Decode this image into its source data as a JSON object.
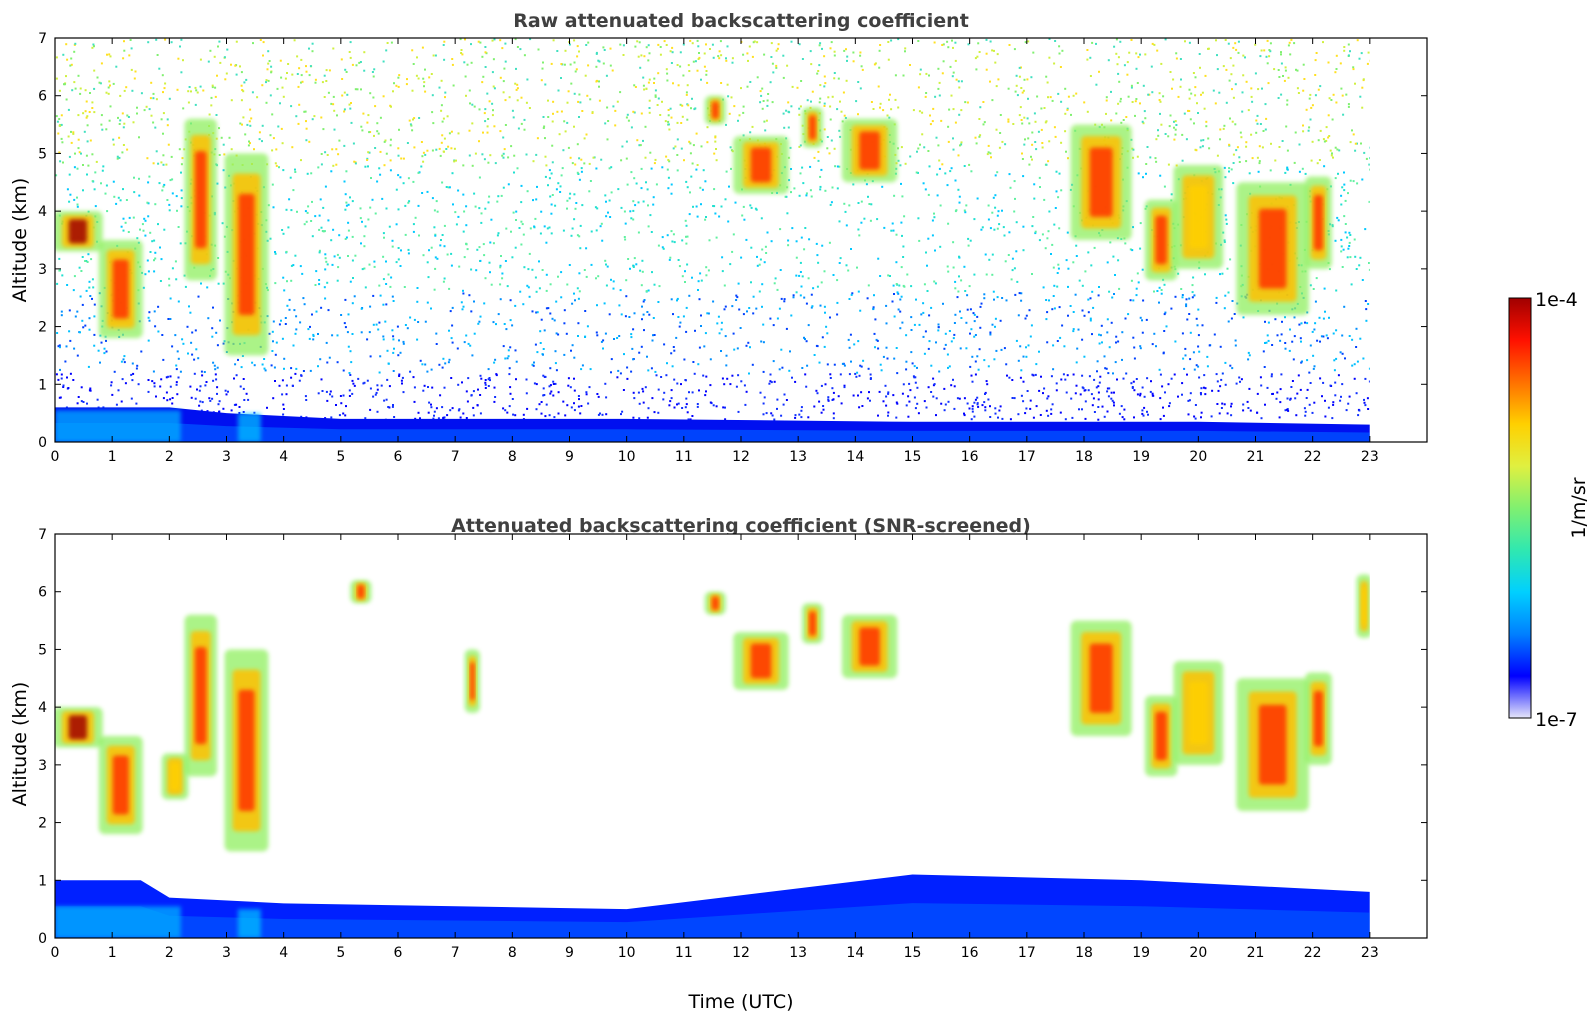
{
  "colors": {
    "colormap": [
      "#e6e6fa",
      "#0000ff",
      "#0080ff",
      "#00d0ff",
      "#30e8b0",
      "#80f070",
      "#e0f040",
      "#ffd000",
      "#ff7000",
      "#ff1000",
      "#a00000"
    ],
    "frame": "#000000",
    "title": "#404040"
  },
  "colorbar": {
    "top_label": "1e-4",
    "bottom_label": "1e-7",
    "unit_label": "1/m/sr",
    "scale": "log",
    "range": [
      1e-07,
      0.0001
    ]
  },
  "chart_data": [
    {
      "type": "heatmap",
      "title": "Raw attenuated backscattering coefficient",
      "xlabel": "",
      "ylabel": "Altitude (km)",
      "xlim": [
        0,
        24
      ],
      "ylim": [
        0,
        7
      ],
      "x_ticks": [
        "0",
        "1",
        "2",
        "3",
        "4",
        "5",
        "6",
        "7",
        "8",
        "9",
        "10",
        "11",
        "12",
        "13",
        "14",
        "15",
        "16",
        "17",
        "18",
        "19",
        "20",
        "21",
        "22",
        "23"
      ],
      "y_ticks": [
        "0",
        "1",
        "2",
        "3",
        "4",
        "5",
        "6",
        "7"
      ],
      "data_extent_x": [
        0,
        23
      ],
      "cloud_features": [
        {
          "x": [
            0,
            0.8
          ],
          "y": [
            3.3,
            4.0
          ],
          "level": "very high"
        },
        {
          "x": [
            0.8,
            1.5
          ],
          "y": [
            1.8,
            3.5
          ],
          "level": "high"
        },
        {
          "x": [
            2.3,
            2.8
          ],
          "y": [
            2.8,
            5.6
          ],
          "level": "high"
        },
        {
          "x": [
            3.0,
            3.7
          ],
          "y": [
            1.5,
            5.0
          ],
          "level": "high"
        },
        {
          "x": [
            11.4,
            11.7
          ],
          "y": [
            5.5,
            6.0
          ],
          "level": "high"
        },
        {
          "x": [
            11.9,
            12.8
          ],
          "y": [
            4.3,
            5.3
          ],
          "level": "high"
        },
        {
          "x": [
            13.1,
            13.4
          ],
          "y": [
            5.1,
            5.8
          ],
          "level": "high"
        },
        {
          "x": [
            13.8,
            14.7
          ],
          "y": [
            4.5,
            5.6
          ],
          "level": "high"
        },
        {
          "x": [
            17.8,
            18.8
          ],
          "y": [
            3.5,
            5.5
          ],
          "level": "high"
        },
        {
          "x": [
            19.1,
            19.6
          ],
          "y": [
            2.8,
            4.2
          ],
          "level": "high"
        },
        {
          "x": [
            19.6,
            20.4
          ],
          "y": [
            3.0,
            4.8
          ],
          "level": "medium"
        },
        {
          "x": [
            20.7,
            21.9
          ],
          "y": [
            2.2,
            4.5
          ],
          "level": "high"
        },
        {
          "x": [
            21.9,
            22.3
          ],
          "y": [
            3.0,
            4.6
          ],
          "level": "high"
        }
      ],
      "boundary_layer": {
        "top_km": [
          0.6,
          0.6,
          0.5,
          0.4,
          0.4,
          0.35,
          0.35,
          0.3
        ],
        "x": [
          0,
          2,
          3,
          5,
          10,
          15,
          20,
          23
        ]
      },
      "noise": "dense signal noise increasing with altitude"
    },
    {
      "type": "heatmap",
      "title": "Attenuated backscattering coefficient (SNR-screened)",
      "xlabel": "Time (UTC)",
      "ylabel": "Altitude (km)",
      "xlim": [
        0,
        24
      ],
      "ylim": [
        0,
        7
      ],
      "x_ticks": [
        "0",
        "1",
        "2",
        "3",
        "4",
        "5",
        "6",
        "7",
        "8",
        "9",
        "10",
        "11",
        "12",
        "13",
        "14",
        "15",
        "16",
        "17",
        "18",
        "19",
        "20",
        "21",
        "22",
        "23"
      ],
      "y_ticks": [
        "0",
        "1",
        "2",
        "3",
        "4",
        "5",
        "6",
        "7"
      ],
      "data_extent_x": [
        0,
        23
      ],
      "cloud_features": [
        {
          "x": [
            0,
            0.8
          ],
          "y": [
            3.3,
            4.0
          ],
          "level": "very high"
        },
        {
          "x": [
            0.8,
            1.5
          ],
          "y": [
            1.8,
            3.5
          ],
          "level": "high"
        },
        {
          "x": [
            1.9,
            2.3
          ],
          "y": [
            2.4,
            3.2
          ],
          "level": "medium"
        },
        {
          "x": [
            2.3,
            2.8
          ],
          "y": [
            2.8,
            5.6
          ],
          "level": "high"
        },
        {
          "x": [
            3.0,
            3.7
          ],
          "y": [
            1.5,
            5.0
          ],
          "level": "high"
        },
        {
          "x": [
            5.2,
            5.5
          ],
          "y": [
            5.8,
            6.2
          ],
          "level": "high"
        },
        {
          "x": [
            7.2,
            7.4
          ],
          "y": [
            3.9,
            5.0
          ],
          "level": "high"
        },
        {
          "x": [
            11.4,
            11.7
          ],
          "y": [
            5.6,
            6.0
          ],
          "level": "high"
        },
        {
          "x": [
            11.9,
            12.8
          ],
          "y": [
            4.3,
            5.3
          ],
          "level": "high"
        },
        {
          "x": [
            13.1,
            13.4
          ],
          "y": [
            5.1,
            5.8
          ],
          "level": "high"
        },
        {
          "x": [
            13.8,
            14.7
          ],
          "y": [
            4.5,
            5.6
          ],
          "level": "high"
        },
        {
          "x": [
            17.8,
            18.8
          ],
          "y": [
            3.5,
            5.5
          ],
          "level": "high"
        },
        {
          "x": [
            19.1,
            19.6
          ],
          "y": [
            2.8,
            4.2
          ],
          "level": "high"
        },
        {
          "x": [
            19.6,
            20.4
          ],
          "y": [
            3.0,
            4.8
          ],
          "level": "medium"
        },
        {
          "x": [
            20.7,
            21.9
          ],
          "y": [
            2.2,
            4.5
          ],
          "level": "high"
        },
        {
          "x": [
            21.9,
            22.3
          ],
          "y": [
            3.0,
            4.6
          ],
          "level": "high"
        },
        {
          "x": [
            22.8,
            23.0
          ],
          "y": [
            5.2,
            6.3
          ],
          "level": "medium"
        }
      ],
      "boundary_layer": {
        "top_km": [
          1.0,
          1.0,
          0.7,
          0.6,
          0.5,
          1.1,
          1.0,
          0.8
        ],
        "x": [
          0,
          1.5,
          2,
          4,
          10,
          15,
          19,
          23
        ]
      },
      "noise": "screened, low-SNR pixels removed"
    }
  ]
}
